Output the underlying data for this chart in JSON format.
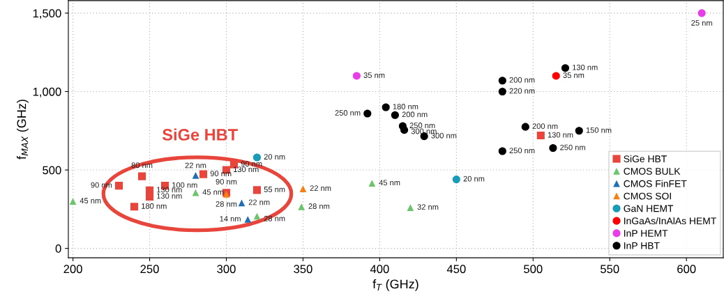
{
  "chart_data": {
    "type": "scatter",
    "xlabel": "f$_{T}$ (GHz)",
    "ylabel": "f$_{MAX}$ (GHz)",
    "xlim": [
      197,
      624
    ],
    "ylim": [
      -60,
      1580
    ],
    "xticks": [
      200,
      250,
      300,
      350,
      400,
      450,
      500,
      550,
      600
    ],
    "yticks": [
      0,
      {
        "value": 500,
        "label": "500"
      },
      {
        "value": 1000,
        "label": "1,000"
      },
      {
        "value": 1500,
        "label": "1,500"
      }
    ],
    "grid": true,
    "legend": "bottom right",
    "annotations": [
      "SiGe HBT",
      {
        "text": "90 nm",
        "x": 230,
        "y": 400
      },
      {
        "text": "80 nm",
        "x": 245,
        "y": 460
      },
      {
        "text": "130 nm",
        "x": 250,
        "y": 370
      },
      {
        "text": "130 nm",
        "x": 250,
        "y": 330
      },
      {
        "text": "100 nm",
        "x": 260,
        "y": 400
      },
      {
        "text": "90 nm",
        "x": 285,
        "y": 473
      },
      {
        "text": "130 nm",
        "x": 300,
        "y": 500
      },
      {
        "text": "90 nm",
        "x": 305,
        "y": 535
      },
      {
        "text": "90 nm",
        "x": 300,
        "y": 355
      },
      {
        "text": "55 nm",
        "x": 320,
        "y": 372
      },
      {
        "text": "180 nm",
        "x": 240,
        "y": 266
      },
      {
        "text": "130 nm",
        "x": 505,
        "y": 720
      },
      {
        "text": "45 nm",
        "x": 200,
        "y": 300
      },
      {
        "text": "45 nm",
        "x": 280,
        "y": 355
      },
      {
        "text": "28 nm",
        "x": 320,
        "y": 205
      },
      {
        "text": "28 nm",
        "x": 349,
        "y": 265
      },
      {
        "text": "45 nm",
        "x": 395,
        "y": 415
      },
      {
        "text": "32 nm",
        "x": 420,
        "y": 260
      },
      {
        "text": "22 nm",
        "x": 280,
        "y": 465
      },
      {
        "text": "22 nm",
        "x": 310,
        "y": 290
      },
      {
        "text": "14 nm",
        "x": 314,
        "y": 185
      },
      {
        "text": "28 nm",
        "x": 300,
        "y": 345
      },
      {
        "text": "22 nm",
        "x": 350,
        "y": 380
      },
      {
        "text": "20 nm",
        "x": 320,
        "y": 580
      },
      {
        "text": "20 nm",
        "x": 450,
        "y": 440
      },
      {
        "text": "35 nm",
        "x": 515,
        "y": 1100
      },
      {
        "text": "35 nm",
        "x": 385,
        "y": 1100
      },
      {
        "text": "25 nm",
        "x": 610,
        "y": 1500
      },
      {
        "text": "180 nm",
        "x": 404,
        "y": 900
      },
      {
        "text": "250 nm",
        "x": 392,
        "y": 860
      },
      {
        "text": "200 nm",
        "x": 410,
        "y": 850
      },
      {
        "text": "250 nm",
        "x": 415,
        "y": 780
      },
      {
        "text": "300 nm",
        "x": 416,
        "y": 755
      },
      {
        "text": "300 nm",
        "x": 429,
        "y": 715
      },
      {
        "text": "200 nm",
        "x": 480,
        "y": 1070
      },
      {
        "text": "220 nm",
        "x": 480,
        "y": 1000
      },
      {
        "text": "130 nm",
        "x": 521,
        "y": 1150
      },
      {
        "text": "200 nm",
        "x": 495,
        "y": 775
      },
      {
        "text": "150 nm",
        "x": 530,
        "y": 750
      },
      {
        "text": "250 nm",
        "x": 480,
        "y": 620
      },
      {
        "text": "250 nm",
        "x": 513,
        "y": 640
      }
    ],
    "series": [
      {
        "name": "SiGe HBT",
        "color": "#e8453c",
        "marker": "square",
        "x": [
          230,
          245,
          250,
          250,
          260,
          285,
          300,
          305,
          300,
          320,
          240,
          505
        ],
        "values": [
          400,
          460,
          370,
          330,
          400,
          473,
          500,
          535,
          355,
          372,
          266,
          720
        ]
      },
      {
        "name": "CMOS BULK",
        "color": "#6cc56a",
        "marker": "triangle",
        "x": [
          200,
          280,
          320,
          349,
          395,
          420
        ],
        "values": [
          300,
          355,
          205,
          265,
          415,
          260
        ]
      },
      {
        "name": "CMOS FinFET",
        "color": "#1f6fb5",
        "marker": "triangle",
        "x": [
          280,
          310,
          314
        ],
        "values": [
          465,
          290,
          185
        ]
      },
      {
        "name": "CMOS SOI",
        "color": "#f57f17",
        "marker": "triangle",
        "x": [
          300,
          350
        ],
        "values": [
          345,
          380
        ]
      },
      {
        "name": "GaN HEMT",
        "color": "#1a9bb8",
        "marker": "circle",
        "x": [
          320,
          450
        ],
        "values": [
          580,
          440
        ]
      },
      {
        "name": "InGaAs/InAlAs HEMT",
        "color": "#ff0000",
        "marker": "circle",
        "x": [
          515
        ],
        "values": [
          1100
        ]
      },
      {
        "name": "InP HEMT",
        "color": "#e83ee8",
        "marker": "circle",
        "x": [
          385,
          610
        ],
        "values": [
          1100,
          1500
        ]
      },
      {
        "name": "InP HBT",
        "color": "#000000",
        "marker": "circle",
        "x": [
          404,
          392,
          410,
          415,
          416,
          429,
          480,
          480,
          521,
          495,
          530,
          480,
          513
        ],
        "values": [
          900,
          860,
          850,
          780,
          755,
          715,
          1070,
          1000,
          1150,
          775,
          750,
          620,
          640
        ]
      }
    ]
  }
}
